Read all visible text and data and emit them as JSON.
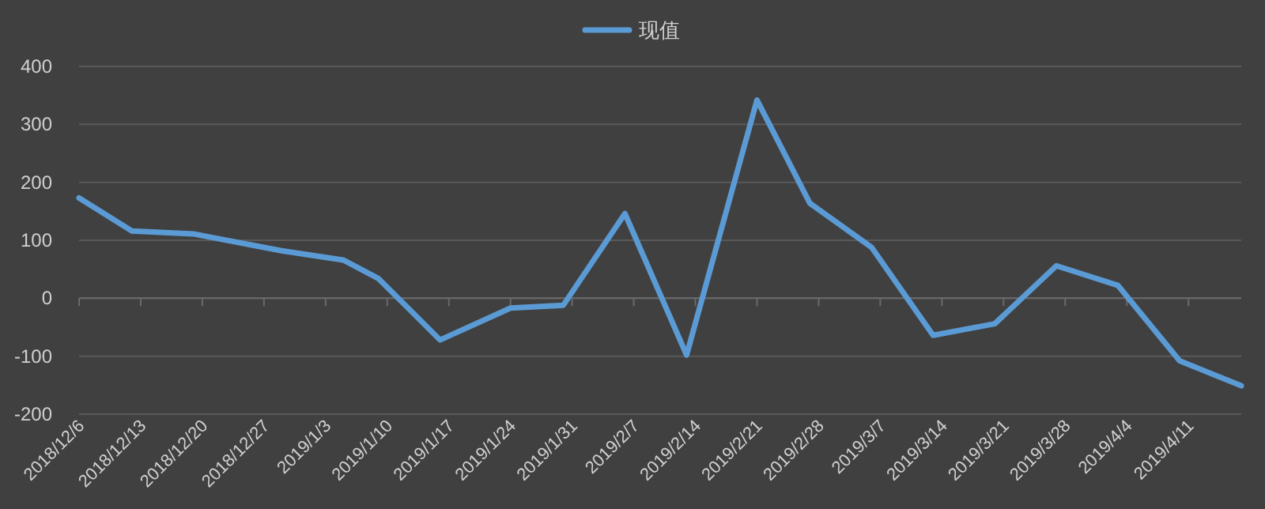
{
  "chart_data": {
    "type": "line",
    "legend": "top",
    "grid": "y",
    "line_style": "solid",
    "marker": "none",
    "x": [
      "2018-12-06",
      "2018-12-12",
      "2018-12-19",
      "2018-12-29",
      "2019-01-05",
      "2019-01-09",
      "2019-01-16",
      "2019-01-24",
      "2019-01-30",
      "2019-02-06",
      "2019-02-13",
      "2019-02-21",
      "2019-02-27",
      "2019-03-06",
      "2019-03-13",
      "2019-03-20",
      "2019-03-27",
      "2019-04-03",
      "2019-04-10",
      "2019-04-17"
    ],
    "series": [
      {
        "name": "现值",
        "color": "#5b9bd5",
        "values": [
          173,
          116,
          111,
          82,
          66,
          34,
          -72,
          -17,
          -12,
          146,
          -98,
          342,
          164,
          88,
          -64,
          -44,
          56,
          22,
          -108,
          -151
        ]
      }
    ],
    "xlim": [
      "2018-12-06",
      "2019-04-17"
    ],
    "xticks": [
      {
        "value": "2018-12-06",
        "label": "2018/12/6"
      },
      {
        "value": "2018-12-13",
        "label": "2018/12/13"
      },
      {
        "value": "2018-12-20",
        "label": "2018/12/20"
      },
      {
        "value": "2018-12-27",
        "label": "2018/12/27"
      },
      {
        "value": "2019-01-03",
        "label": "2019/1/3"
      },
      {
        "value": "2019-01-10",
        "label": "2019/1/10"
      },
      {
        "value": "2019-01-17",
        "label": "2019/1/17"
      },
      {
        "value": "2019-01-24",
        "label": "2019/1/24"
      },
      {
        "value": "2019-01-31",
        "label": "2019/1/31"
      },
      {
        "value": "2019-02-07",
        "label": "2019/2/7"
      },
      {
        "value": "2019-02-14",
        "label": "2019/2/14"
      },
      {
        "value": "2019-02-21",
        "label": "2019/2/21"
      },
      {
        "value": "2019-02-28",
        "label": "2019/2/28"
      },
      {
        "value": "2019-03-07",
        "label": "2019/3/7"
      },
      {
        "value": "2019-03-14",
        "label": "2019/3/14"
      },
      {
        "value": "2019-03-21",
        "label": "2019/3/21"
      },
      {
        "value": "2019-03-28",
        "label": "2019/3/28"
      },
      {
        "value": "2019-04-04",
        "label": "2019/4/4"
      },
      {
        "value": "2019-04-11",
        "label": "2019/4/11"
      }
    ],
    "ylim": [
      -200,
      400
    ],
    "yticks": [
      -200,
      -100,
      0,
      100,
      200,
      300,
      400
    ]
  }
}
